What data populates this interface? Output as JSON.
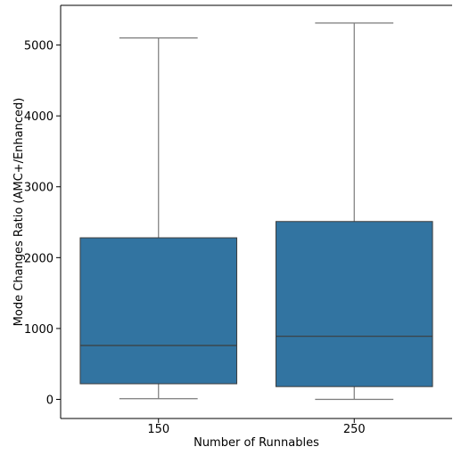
{
  "chart_data": {
    "type": "box",
    "xlabel": "Number of Runnables",
    "ylabel": "Mode Changes Ratio (AMC+/Enhanced)",
    "categories": [
      "150",
      "250"
    ],
    "boxes": [
      {
        "category": "150",
        "whisker_low": 10,
        "q1": 220,
        "median": 760,
        "q3": 2280,
        "whisker_high": 5100
      },
      {
        "category": "250",
        "whisker_low": 0,
        "q1": 180,
        "median": 890,
        "q3": 2510,
        "whisker_high": 5310
      }
    ],
    "yticks": [
      0,
      1000,
      2000,
      3000,
      4000,
      5000
    ],
    "ylim": [
      -270,
      5560
    ],
    "grid": false,
    "legend": "none",
    "colors": {
      "box_fill": "#3274a1",
      "box_edge": "#3d3d3d",
      "whisker": "#7a7a7a",
      "median": "#3d3d3d"
    }
  }
}
